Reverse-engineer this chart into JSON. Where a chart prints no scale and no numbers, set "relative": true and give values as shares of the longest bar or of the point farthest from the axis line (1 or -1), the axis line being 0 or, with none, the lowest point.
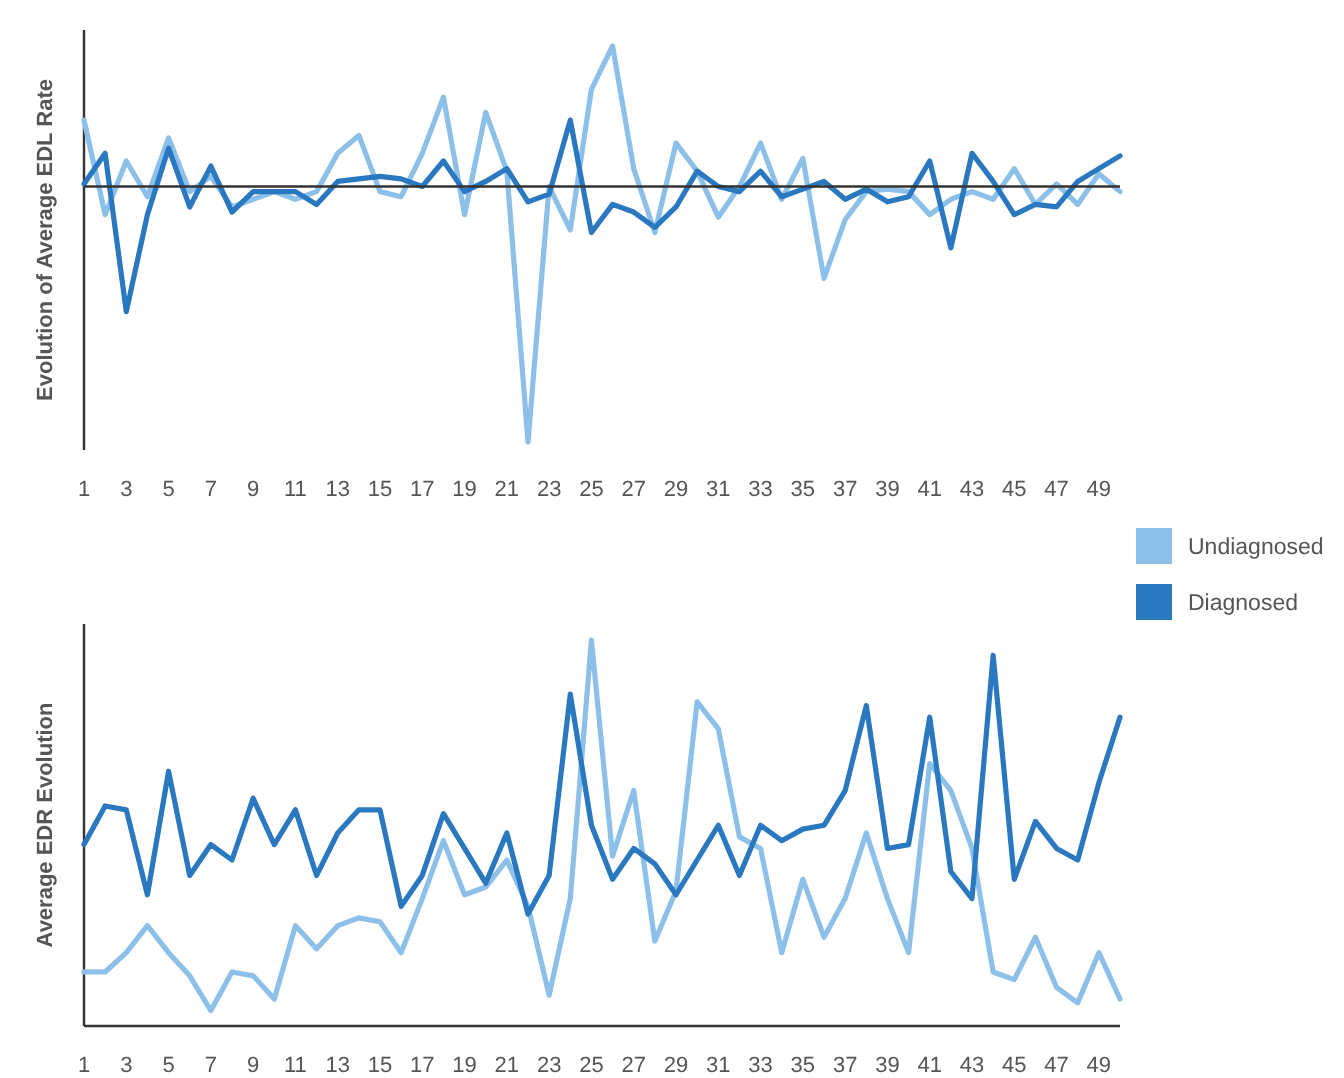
{
  "chart_data": [
    {
      "type": "line",
      "relative": true,
      "ylabel": "Evolution of Average EDL Rate",
      "x": [
        1,
        2,
        3,
        4,
        5,
        6,
        7,
        8,
        9,
        10,
        11,
        12,
        13,
        14,
        15,
        16,
        17,
        18,
        19,
        20,
        21,
        22,
        23,
        24,
        25,
        26,
        27,
        28,
        29,
        30,
        31,
        32,
        33,
        34,
        35,
        36,
        37,
        38,
        39,
        40,
        41,
        42,
        43,
        44,
        45,
        46,
        47,
        48,
        49,
        50
      ],
      "xlim": [
        1,
        50
      ],
      "xticks": [
        1,
        3,
        5,
        7,
        9,
        11,
        13,
        15,
        17,
        19,
        21,
        23,
        25,
        27,
        29,
        31,
        33,
        35,
        37,
        39,
        41,
        43,
        45,
        47,
        49
      ],
      "legend": false,
      "marker": "none",
      "line_style": "solid",
      "series": [
        {
          "color": "#8dc0e8",
          "values": [
            0.26,
            -0.11,
            0.1,
            -0.04,
            0.19,
            -0.02,
            0.04,
            -0.08,
            -0.05,
            -0.02,
            -0.05,
            -0.02,
            0.13,
            0.2,
            -0.02,
            -0.04,
            0.13,
            0.35,
            -0.11,
            0.29,
            0.06,
            -1,
            0,
            -0.17,
            0.38,
            0.55,
            0.07,
            -0.18,
            0.17,
            0.06,
            -0.12,
            0,
            0.17,
            -0.05,
            0.11,
            -0.36,
            -0.13,
            -0.02,
            -0.01,
            -0.02,
            -0.11,
            -0.05,
            -0.02,
            -0.05,
            0.07,
            -0.07,
            0.01,
            -0.07,
            0.05,
            -0.02
          ]
        },
        {
          "color": "#2a78bf",
          "values": [
            0.01,
            0.13,
            -0.49,
            -0.11,
            0.15,
            -0.08,
            0.08,
            -0.1,
            -0.02,
            -0.02,
            -0.02,
            -0.07,
            0.02,
            0.03,
            0.04,
            0.03,
            0,
            0.1,
            -0.02,
            0.02,
            0.07,
            -0.06,
            -0.03,
            0.26,
            -0.18,
            -0.07,
            -0.1,
            -0.16,
            -0.08,
            0.06,
            0,
            -0.02,
            0.06,
            -0.04,
            -0.01,
            0.02,
            -0.05,
            -0.01,
            -0.06,
            -0.04,
            0.1,
            -0.24,
            0.13,
            0.02,
            -0.11,
            -0.07,
            -0.08,
            0.02,
            0.07,
            0.12
          ]
        }
      ]
    },
    {
      "type": "line",
      "relative": true,
      "ylabel": "Average EDR Evolution",
      "x": [
        1,
        2,
        3,
        4,
        5,
        6,
        7,
        8,
        9,
        10,
        11,
        12,
        13,
        14,
        15,
        16,
        17,
        18,
        19,
        20,
        21,
        22,
        23,
        24,
        25,
        26,
        27,
        28,
        29,
        30,
        31,
        32,
        33,
        34,
        35,
        36,
        37,
        38,
        39,
        40,
        41,
        42,
        43,
        44,
        45,
        46,
        47,
        48,
        49,
        50
      ],
      "xlim": [
        1,
        50
      ],
      "xticks": [
        1,
        3,
        5,
        7,
        9,
        11,
        13,
        15,
        17,
        19,
        21,
        23,
        25,
        27,
        29,
        31,
        33,
        35,
        37,
        39,
        41,
        43,
        45,
        47,
        49
      ],
      "legend": "top right",
      "marker": "none",
      "line_style": "solid",
      "series": [
        {
          "name": "Undiagnosed",
          "color": "#8dc0e8",
          "values": [
            0.14,
            0.14,
            0.19,
            0.26,
            0.19,
            0.13,
            0.04,
            0.14,
            0.13,
            0.07,
            0.26,
            0.2,
            0.26,
            0.28,
            0.27,
            0.19,
            0.33,
            0.48,
            0.34,
            0.36,
            0.43,
            0.31,
            0.08,
            0.33,
            1,
            0.44,
            0.61,
            0.22,
            0.35,
            0.84,
            0.77,
            0.49,
            0.46,
            0.19,
            0.38,
            0.23,
            0.33,
            0.5,
            0.33,
            0.19,
            0.68,
            0.61,
            0.46,
            0.14,
            0.12,
            0.23,
            0.1,
            0.06,
            0.19,
            0.07
          ]
        },
        {
          "name": "Diagnosed",
          "color": "#2a78bf",
          "values": [
            0.47,
            0.57,
            0.56,
            0.34,
            0.66,
            0.39,
            0.47,
            0.43,
            0.59,
            0.47,
            0.56,
            0.39,
            0.5,
            0.56,
            0.56,
            0.31,
            0.39,
            0.55,
            0.46,
            0.37,
            0.5,
            0.29,
            0.39,
            0.86,
            0.52,
            0.38,
            0.46,
            0.42,
            0.34,
            0.43,
            0.52,
            0.39,
            0.52,
            0.48,
            0.51,
            0.52,
            0.61,
            0.83,
            0.46,
            0.47,
            0.8,
            0.4,
            0.33,
            0.96,
            0.38,
            0.53,
            0.46,
            0.43,
            0.63,
            0.8
          ]
        }
      ]
    }
  ]
}
